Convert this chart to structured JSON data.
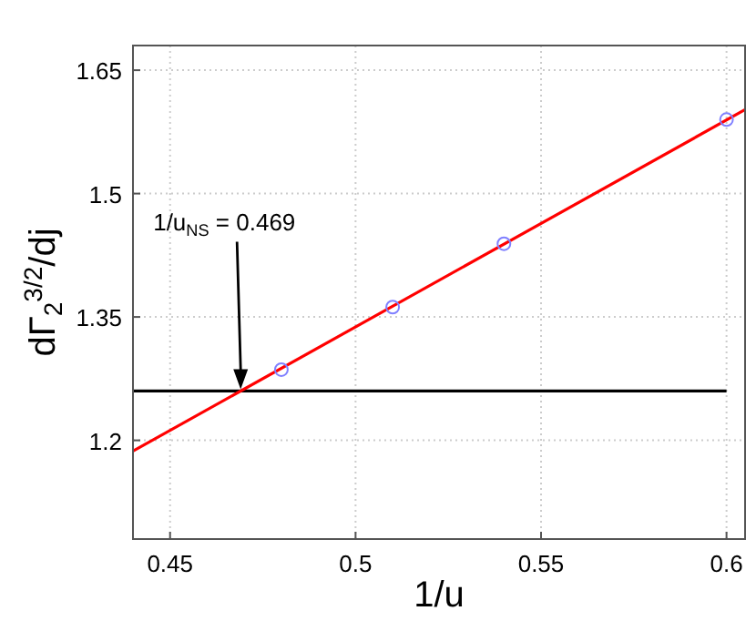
{
  "chart_data": {
    "type": "scatter",
    "xlabel": "1/u",
    "ylabel": "dΓ$_{2}$$^{3/2}$/dj",
    "xlim": [
      0.44,
      0.605
    ],
    "ylim": [
      1.08,
      1.68
    ],
    "xticks": [
      0.45,
      0.5,
      0.55,
      0.6
    ],
    "yticks": [
      1.2,
      1.35,
      1.5,
      1.65
    ],
    "grid": true,
    "marker": "circle",
    "line_style": "solid",
    "series": [
      {
        "type": "line",
        "marker": "none",
        "color": "#000000",
        "x": [
          0.44,
          0.6
        ],
        "values": [
          1.26,
          1.26
        ]
      },
      {
        "type": "line",
        "marker": "none",
        "color": "#ff0000",
        "x": [
          0.44,
          0.605
        ],
        "values": [
          1.187,
          1.602
        ]
      },
      {
        "color": "#8080ff",
        "x": [
          0.48,
          0.51,
          0.54,
          0.6
        ],
        "values": [
          1.286,
          1.362,
          1.439,
          1.59
        ]
      }
    ],
    "annotations": [
      "1/u$_{NS}$ = 0.469"
    ]
  }
}
